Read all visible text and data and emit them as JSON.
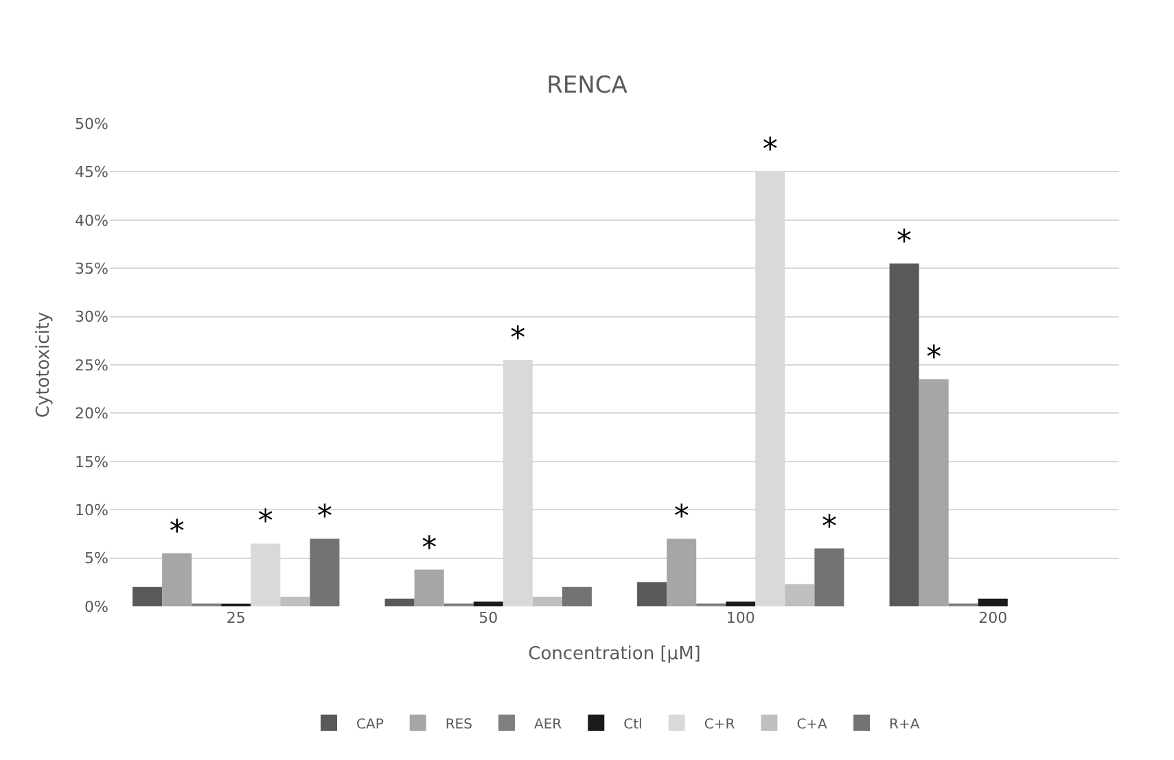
{
  "chart_data": {
    "type": "bar",
    "title": "RENCA",
    "xlabel": "Concentration [µM]",
    "ylabel": "Cytotoxicity",
    "categories": [
      "25",
      "50",
      "100",
      "200"
    ],
    "series": [
      {
        "name": "CAP",
        "color": "#595959",
        "values": [
          2,
          0.8,
          2.5,
          35.5
        ],
        "value_labels": [
          null,
          null,
          null,
          "*"
        ]
      },
      {
        "name": "RES",
        "color": "#a6a6a6",
        "values": [
          5.5,
          3.8,
          7,
          23.5
        ],
        "value_labels": [
          "*",
          "*",
          "*",
          "*"
        ]
      },
      {
        "name": "AER",
        "color": "#7f7f7f",
        "values": [
          0.3,
          0.3,
          0.3,
          0.3
        ],
        "value_labels": [
          null,
          null,
          null,
          null
        ]
      },
      {
        "name": "Ctl",
        "color": "#1a1a1a",
        "values": [
          0.2,
          0.5,
          0.5,
          0.8
        ],
        "value_labels": [
          null,
          null,
          null,
          null
        ]
      },
      {
        "name": "C+R",
        "color": "#d9d9d9",
        "values": [
          6.5,
          25.5,
          45,
          null
        ],
        "value_labels": [
          "*",
          "*",
          "*",
          null
        ]
      },
      {
        "name": "C+A",
        "color": "#bfbfbf",
        "values": [
          1,
          1,
          2.3,
          null
        ],
        "value_labels": [
          null,
          null,
          null,
          null
        ]
      },
      {
        "name": "R+A",
        "color": "#737373",
        "values": [
          7,
          2,
          6,
          null
        ],
        "value_labels": [
          "*",
          null,
          "*",
          null
        ]
      }
    ],
    "ylim": [
      0,
      50
    ],
    "yticks": [
      {
        "value": 0,
        "label": "0%"
      },
      {
        "value": 5,
        "label": "5%"
      },
      {
        "value": 10,
        "label": "10%"
      },
      {
        "value": 15,
        "label": "15%"
      },
      {
        "value": 20,
        "label": "20%"
      },
      {
        "value": 25,
        "label": "25%"
      },
      {
        "value": 30,
        "label": "30%"
      },
      {
        "value": 35,
        "label": "35%"
      },
      {
        "value": 40,
        "label": "40%"
      },
      {
        "value": 45,
        "label": "45%"
      },
      {
        "value": 50,
        "label": "50%"
      }
    ],
    "grid": "y",
    "legend": "bottom"
  }
}
